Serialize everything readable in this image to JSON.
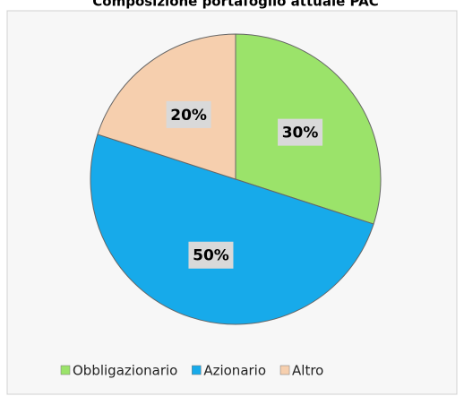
{
  "chart_data": {
    "type": "pie",
    "title": "Composizione portafoglio attuale PAC",
    "categories": [
      "Obbligazionario",
      "Azionario",
      "Altro"
    ],
    "values": [
      30,
      50,
      20
    ],
    "value_labels": [
      "30%",
      "50%",
      "20%"
    ],
    "colors": [
      "#9be36a",
      "#17aaea",
      "#f6cfae"
    ],
    "legend": "bottom"
  }
}
